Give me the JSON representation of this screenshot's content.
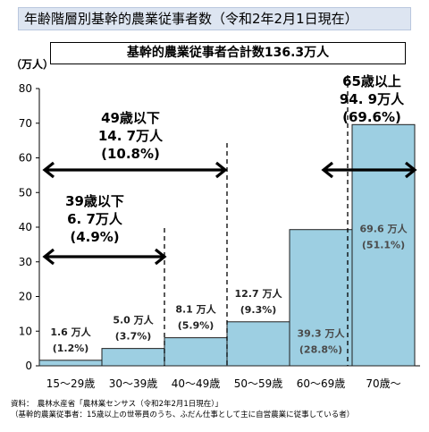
{
  "title": "年齢階層別基幹的農業従事者数（令和2年2月1日現在）",
  "subtitle": "基幹的農業従事者合計数136.3万人",
  "unit": "（万人）",
  "notes": {
    "line1": "資料：　農林水産省「農林業センサス（令和2年2月1日現在）」",
    "line2": "（基幹的農業従事者：15歳以上の世帯員のうち、ふだん仕事として主に自営農業に従事している者）"
  },
  "chart_data": {
    "type": "bar",
    "title": "年齢階層別基幹的農業従事者数（令和2年2月1日現在）",
    "ylabel": "（万人）",
    "ylim": [
      0,
      80
    ],
    "yticks": [
      0,
      10,
      20,
      30,
      40,
      50,
      60,
      70,
      80
    ],
    "grid": false,
    "categories": [
      "15～29歳",
      "30～39歳",
      "40～49歳",
      "50～59歳",
      "60～69歳",
      "70歳～"
    ],
    "values": [
      1.6,
      5.0,
      8.1,
      12.7,
      39.3,
      69.6
    ],
    "value_labels": [
      "1.6 万人",
      "5.0 万人",
      "8.1 万人",
      "12.7 万人",
      "39.3 万人",
      "69.6 万人"
    ],
    "percent_labels": [
      "(1.2%)",
      "(3.7%)",
      "(5.9%)",
      "(9.3%)",
      "(28.8%)",
      "(51.1%)"
    ],
    "bar_color": "#9dcfe2",
    "annotations": [
      {
        "lines": [
          "39歳以下",
          "6. 7万人",
          "(4.9%)"
        ]
      },
      {
        "lines": [
          "49歳以下",
          "14. 7万人",
          "(10.8%)"
        ]
      },
      {
        "lines": [
          "65歳以上",
          "94. 9万人",
          "(69.6%)"
        ]
      }
    ]
  }
}
